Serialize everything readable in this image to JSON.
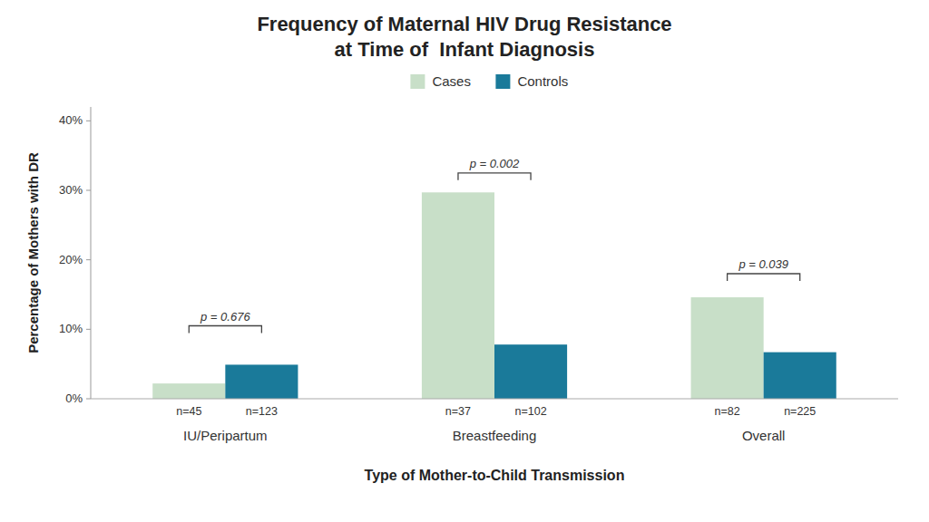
{
  "chart_data": {
    "type": "bar",
    "title": "Frequency of Maternal HIV Drug Resistance",
    "subtitle": "at Time of  Infant Diagnosis",
    "x_label": "Type of Mother-to-Child Transmission",
    "y_label": "Percentage of Mothers with DR",
    "categories": [
      "IU/Peripartum",
      "Breastfeeding",
      "Overall"
    ],
    "series": [
      {
        "name": "Cases",
        "color": "#c8dfc8",
        "values": [
          2.2,
          29.7,
          14.6
        ],
        "n_labels": [
          "n=45",
          "n=37",
          "n=82"
        ]
      },
      {
        "name": "Controls",
        "color": "#1a7a9a",
        "values": [
          4.9,
          7.8,
          6.7
        ],
        "n_labels": [
          "n=123",
          "n=102",
          "n=225"
        ]
      }
    ],
    "p_values": [
      "p = 0.676",
      "p = 0.002",
      "p = 0.039"
    ],
    "bracket_y": [
      10.5,
      32.5,
      18.0
    ],
    "ylim": [
      0,
      42
    ],
    "yticks": [
      {
        "value": 0,
        "label": "0%"
      },
      {
        "value": 10,
        "label": "10%"
      },
      {
        "value": 20,
        "label": "20%"
      },
      {
        "value": 30,
        "label": "30%"
      },
      {
        "value": 40,
        "label": "40%"
      }
    ],
    "grid": false,
    "legend": "top"
  }
}
